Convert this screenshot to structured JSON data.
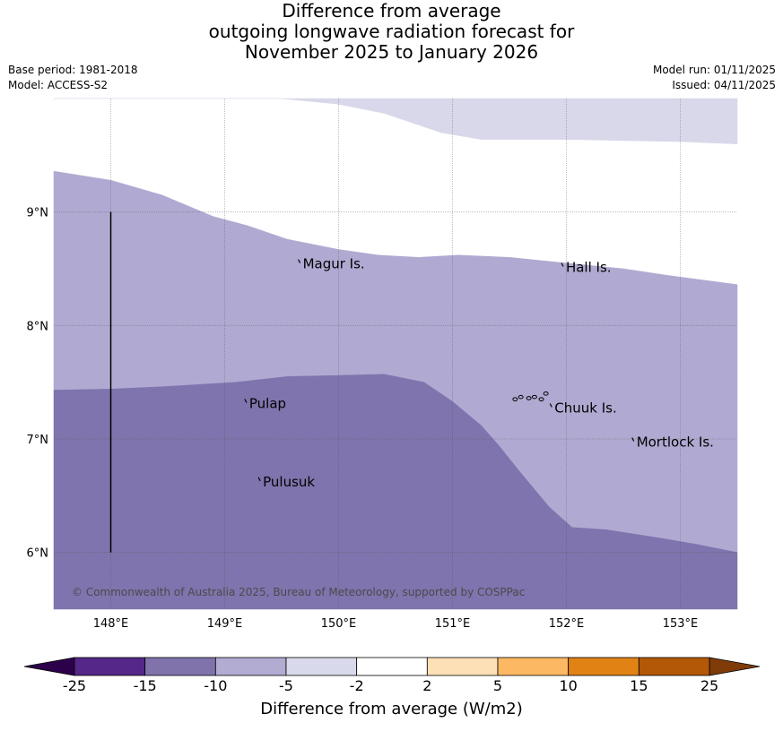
{
  "header": {
    "title_lines": [
      "Difference from average",
      "outgoing longwave radiation forecast for",
      "November 2025 to January 2026"
    ],
    "base_period": "Base period: 1981-2018",
    "model": "Model: ACCESS-S2",
    "model_run": "Model run: 01/11/2025",
    "issued": "Issued: 04/11/2025"
  },
  "map": {
    "lon_range": [
      147.5,
      153.5
    ],
    "lat_range": [
      5.5,
      10.0
    ],
    "lon_ticks": [
      {
        "value": 148,
        "label": "148°E"
      },
      {
        "value": 149,
        "label": "149°E"
      },
      {
        "value": 150,
        "label": "150°E"
      },
      {
        "value": 151,
        "label": "151°E"
      },
      {
        "value": 152,
        "label": "152°E"
      },
      {
        "value": 153,
        "label": "153°E"
      }
    ],
    "lat_ticks": [
      {
        "value": 9,
        "label": "9°N"
      },
      {
        "value": 8,
        "label": "8°N"
      },
      {
        "value": 7,
        "label": "7°N"
      },
      {
        "value": 6,
        "label": "6°N"
      }
    ],
    "places": [
      {
        "name": "Magur Is.",
        "lon": 149.67,
        "lat": 8.55
      },
      {
        "name": "Hall Is.",
        "lon": 151.98,
        "lat": 8.52
      },
      {
        "name": "Pulap",
        "lon": 149.2,
        "lat": 7.32
      },
      {
        "name": "Chuuk Is.",
        "lon": 151.88,
        "lat": 7.28
      },
      {
        "name": "Mortlock Is.",
        "lon": 152.6,
        "lat": 6.98
      },
      {
        "name": "Pulusuk",
        "lon": 149.32,
        "lat": 6.63
      }
    ],
    "vertical_line": {
      "lon": 148.0,
      "lat_from": 6.0,
      "lat_to": 9.0
    },
    "copyright": "© Commonwealth of Australia 2025, Bureau of Meteorology, supported by COSPPac",
    "regions": [
      {
        "category": "-5 to -2",
        "color": "#d8d8ea",
        "polygon": [
          [
            147.5,
            10.0
          ],
          [
            149.5,
            10.0
          ],
          [
            150.0,
            9.95
          ],
          [
            150.4,
            9.87
          ],
          [
            150.9,
            9.7
          ],
          [
            151.25,
            9.64
          ],
          [
            152.0,
            9.64
          ],
          [
            152.5,
            9.63
          ],
          [
            153.0,
            9.62
          ],
          [
            153.5,
            9.6
          ],
          [
            153.5,
            10.0
          ]
        ]
      },
      {
        "category": "-10 to -5",
        "color": "#b0aad2",
        "polygon": [
          [
            147.5,
            9.36
          ],
          [
            148.0,
            9.28
          ],
          [
            148.45,
            9.15
          ],
          [
            148.9,
            8.96
          ],
          [
            149.2,
            8.88
          ],
          [
            149.55,
            8.76
          ],
          [
            150.0,
            8.67
          ],
          [
            150.35,
            8.62
          ],
          [
            150.7,
            8.6
          ],
          [
            151.05,
            8.62
          ],
          [
            151.5,
            8.6
          ],
          [
            152.0,
            8.55
          ],
          [
            152.5,
            8.5
          ],
          [
            152.9,
            8.44
          ],
          [
            153.5,
            8.36
          ],
          [
            153.5,
            6.0
          ],
          [
            153.15,
            6.07
          ],
          [
            152.8,
            6.13
          ],
          [
            152.35,
            6.2
          ],
          [
            152.05,
            6.22
          ],
          [
            151.85,
            6.4
          ],
          [
            151.6,
            6.7
          ],
          [
            151.4,
            6.95
          ],
          [
            151.25,
            7.12
          ],
          [
            151.0,
            7.33
          ],
          [
            150.75,
            7.5
          ],
          [
            150.4,
            7.57
          ],
          [
            150.0,
            7.56
          ],
          [
            149.55,
            7.55
          ],
          [
            149.1,
            7.5
          ],
          [
            148.45,
            7.46
          ],
          [
            148.0,
            7.44
          ],
          [
            147.5,
            7.43
          ]
        ]
      },
      {
        "category": "-15 to -10",
        "color": "#7f74ad",
        "polygon": [
          [
            147.5,
            7.43
          ],
          [
            148.0,
            7.44
          ],
          [
            148.45,
            7.46
          ],
          [
            149.1,
            7.5
          ],
          [
            149.55,
            7.55
          ],
          [
            150.0,
            7.56
          ],
          [
            150.4,
            7.57
          ],
          [
            150.75,
            7.5
          ],
          [
            151.0,
            7.33
          ],
          [
            151.25,
            7.12
          ],
          [
            151.4,
            6.95
          ],
          [
            151.6,
            6.7
          ],
          [
            151.85,
            6.4
          ],
          [
            152.05,
            6.22
          ],
          [
            152.35,
            6.2
          ],
          [
            152.8,
            6.13
          ],
          [
            153.15,
            6.07
          ],
          [
            153.5,
            6.0
          ],
          [
            153.5,
            5.5
          ],
          [
            147.5,
            5.5
          ]
        ]
      }
    ]
  },
  "colorbar": {
    "title": "Difference from average (W/m2)",
    "extend_low_color": "#2d004b",
    "extend_high_color": "#7f3b08",
    "bins": [
      "#542788",
      "#8073ac",
      "#b2abd2",
      "#d8daeb",
      "#ffffff",
      "#fee0b6",
      "#fdb863",
      "#e08214",
      "#b35806"
    ],
    "labels": [
      "-25",
      "-15",
      "-10",
      "-5",
      "-2",
      "2",
      "5",
      "10",
      "15",
      "25"
    ]
  }
}
